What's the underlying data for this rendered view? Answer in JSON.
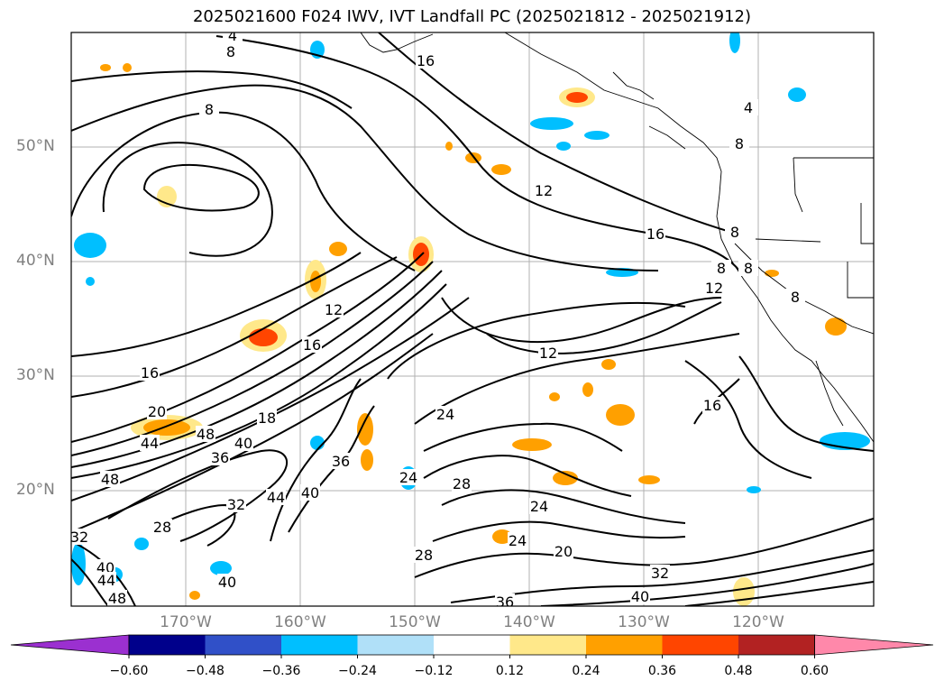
{
  "title": "2025021600 F024 IWV, IVT Landfall PC (2025021812 - 2025021912)",
  "map": {
    "lat_labels": [
      "50°N",
      "40°N",
      "30°N",
      "20°N"
    ],
    "lon_labels": [
      "170°W",
      "160°W",
      "150°W",
      "140°W",
      "130°W",
      "120°W"
    ],
    "contour_labels": [
      "4",
      "8",
      "16",
      "8",
      "12",
      "16",
      "12",
      "16",
      "8",
      "8",
      "4",
      "8",
      "12",
      "8",
      "16",
      "24",
      "16",
      "20",
      "48",
      "44",
      "18",
      "40",
      "36",
      "48",
      "44",
      "40",
      "36",
      "32",
      "28",
      "28",
      "24",
      "24",
      "28",
      "24",
      "20",
      "32",
      "40",
      "44",
      "48",
      "40",
      "36",
      "32",
      "40",
      "12",
      "8"
    ]
  },
  "colorbar": {
    "ticks": [
      "−0.60",
      "−0.48",
      "−0.36",
      "−0.24",
      "−0.12",
      "0.12",
      "0.24",
      "0.36",
      "0.48",
      "0.60"
    ],
    "colors": [
      "#9b30d0",
      "#00008b",
      "#3050c8",
      "#00bfff",
      "#b0e0f8",
      "#ffffff",
      "#ffe88a",
      "#ffa000",
      "#ff4500",
      "#b22222",
      "#ff88aa"
    ]
  }
}
